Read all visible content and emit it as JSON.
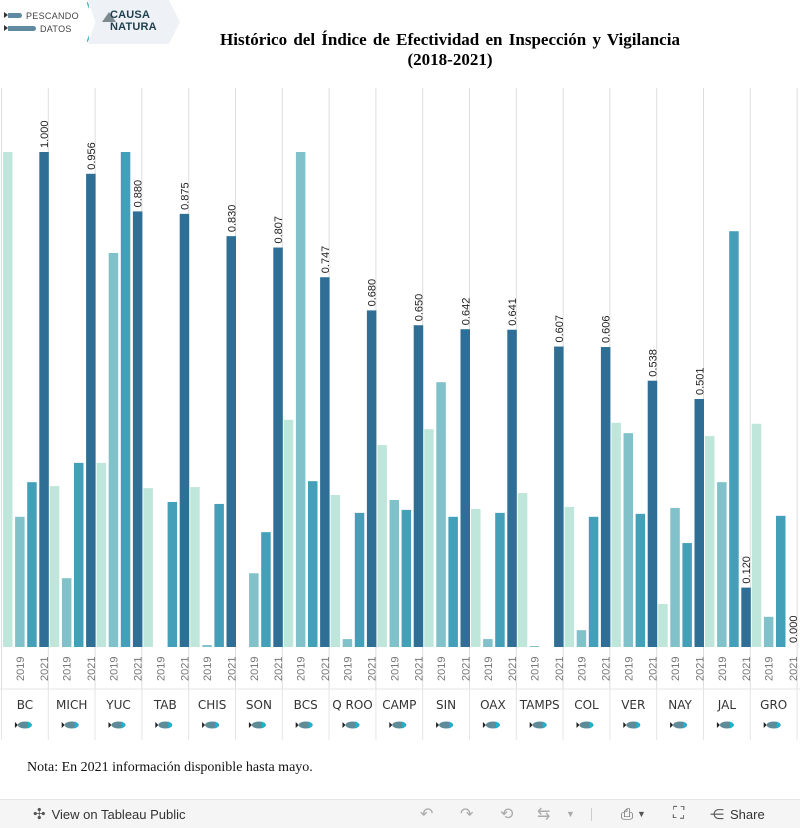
{
  "logos": {
    "left_lines": [
      "PESCANDO",
      "DATOS"
    ],
    "right_lines": [
      "CAUSA",
      "NATURA"
    ]
  },
  "title_lines": [
    "Histórico del Índice de Efectividad en Inspección y Vigilancia",
    "(2018-2021)"
  ],
  "note": "Nota: En 2021 información disponible hasta mayo.",
  "toolbar": {
    "view_label": "View on Tableau Public",
    "share_label": "Share"
  },
  "chart_data": {
    "type": "bar",
    "title": "Histórico del Índice de Efectividad en Inspección y Vigilancia (2018-2021)",
    "xlabel": "",
    "ylabel": "",
    "ylim": [
      0,
      1.08
    ],
    "grid": "vertical group separators",
    "years": [
      "2018",
      "2019",
      "2020",
      "2021"
    ],
    "year_tick_labels": [
      "",
      "2019",
      "",
      "2021"
    ],
    "colors": [
      "#bfe6da",
      "#80c1ca",
      "#44a0b9",
      "#2f6f96"
    ],
    "labeled_year": "2021",
    "categories": [
      "BC",
      "MICH",
      "YUC",
      "TAB",
      "CHIS",
      "SON",
      "BCS",
      "Q ROO",
      "CAMP",
      "SIN",
      "OAX",
      "TAMPS",
      "COL",
      "VER",
      "NAY",
      "JAL",
      "GRO"
    ],
    "series": [
      {
        "name": "2018",
        "values": [
          1.0,
          0.325,
          0.372,
          0.321,
          0.323,
          null,
          0.459,
          0.307,
          0.408,
          0.44,
          0.279,
          0.311,
          0.283,
          0.453,
          0.087,
          0.426,
          0.451
        ]
      },
      {
        "name": "2019",
        "values": [
          0.263,
          0.139,
          0.796,
          null,
          0.004,
          0.149,
          1.0,
          0.016,
          0.297,
          0.535,
          0.016,
          0.002,
          0.034,
          0.432,
          0.281,
          0.333,
          0.061
        ]
      },
      {
        "name": "2020",
        "values": [
          0.333,
          0.372,
          1.0,
          0.293,
          0.289,
          0.232,
          0.335,
          0.271,
          0.277,
          0.263,
          0.271,
          null,
          0.263,
          0.269,
          0.21,
          0.84,
          0.265
        ]
      },
      {
        "name": "2021",
        "values": [
          1.0,
          0.956,
          0.88,
          0.875,
          0.83,
          0.807,
          0.747,
          0.68,
          0.65,
          0.642,
          0.641,
          0.607,
          0.606,
          0.538,
          0.501,
          0.12,
          0.0
        ]
      }
    ],
    "data_labels_2021": [
      "1.000",
      "0.956",
      "0.880",
      "0.875",
      "0.830",
      "0.807",
      "0.747",
      "0.680",
      "0.650",
      "0.642",
      "0.641",
      "0.607",
      "0.606",
      "0.538",
      "0.501",
      "0.120",
      "0.000"
    ]
  }
}
